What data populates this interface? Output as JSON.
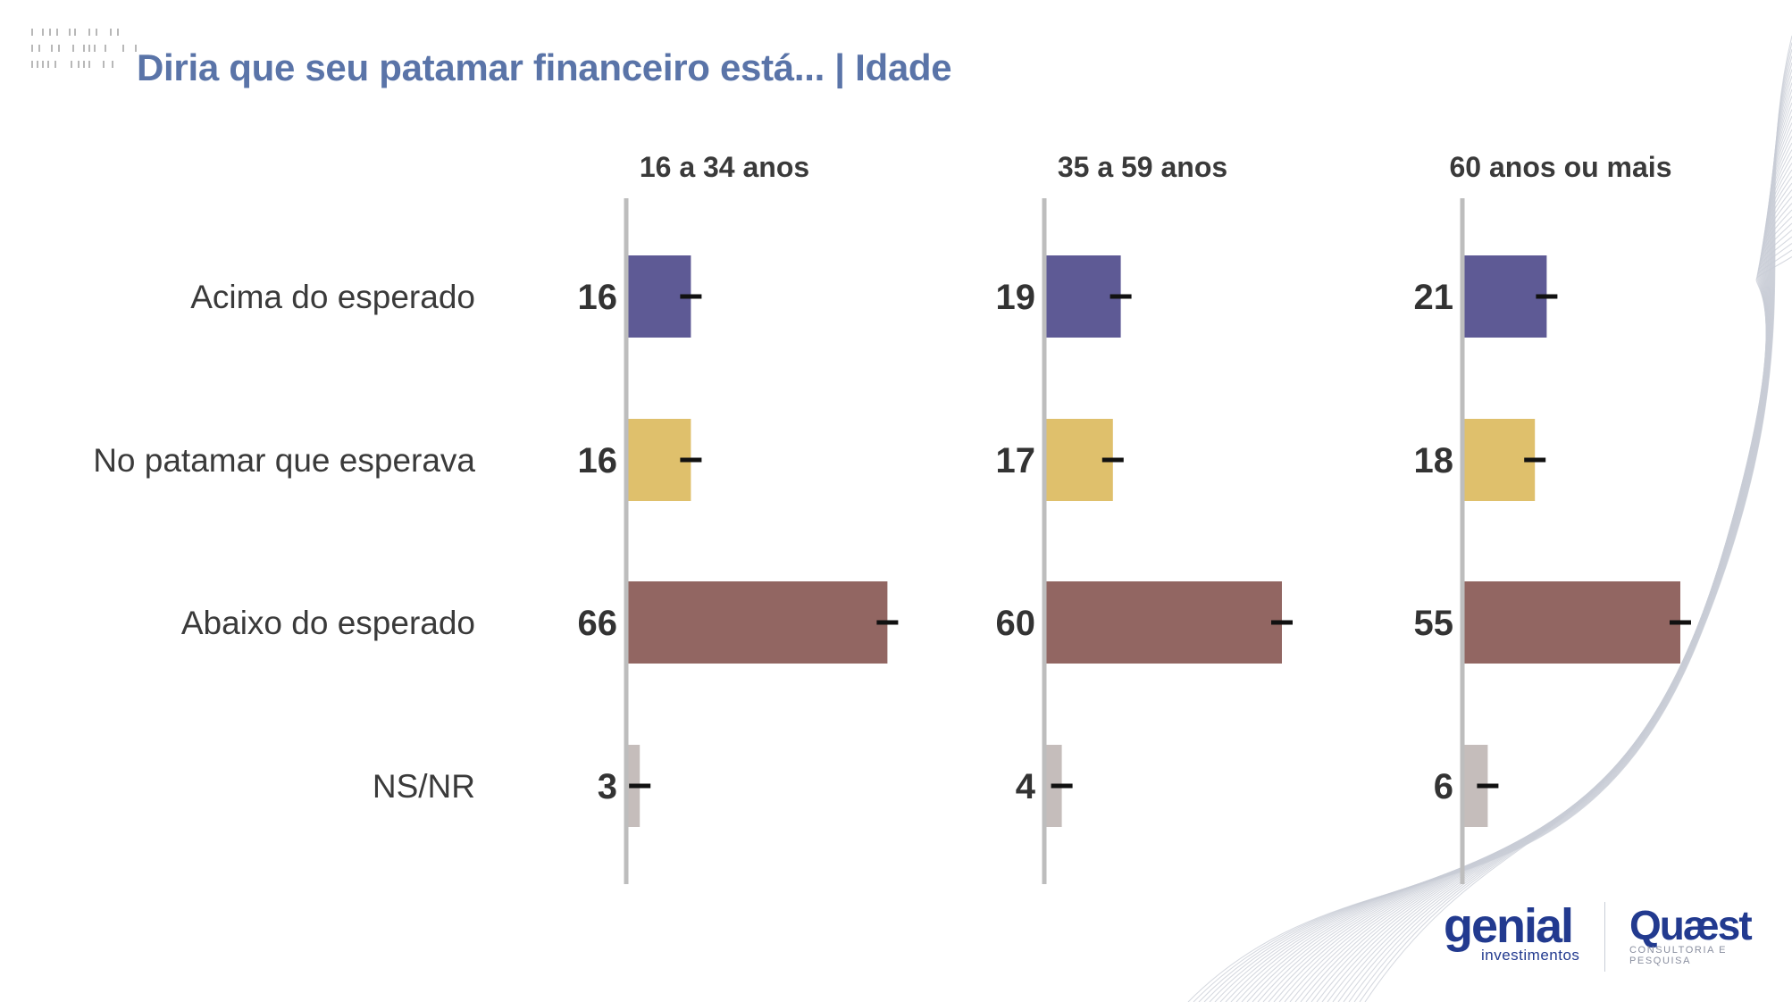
{
  "title": "Diria que seu patamar financeiro está... | Idade",
  "colors": {
    "title": "#5a74a8",
    "acima": "#5e5a95",
    "no_patamar": "#dfc06c",
    "abaixo": "#926662",
    "nsnr": "#c5bdbb",
    "axis": "#bdbdbd",
    "error_bar": "#111111",
    "logo": "#223a8f"
  },
  "chart_data": {
    "type": "bar",
    "orientation": "horizontal",
    "categories": [
      "Acima do esperado",
      "No patamar que esperava",
      "Abaixo do esperado",
      "NS/NR"
    ],
    "panels": [
      {
        "title": "16 a 34 anos",
        "values": [
          16,
          16,
          66,
          3
        ]
      },
      {
        "title": "35 a 59 anos",
        "values": [
          19,
          17,
          60,
          4
        ]
      },
      {
        "title": "60 anos ou mais",
        "values": [
          21,
          18,
          55,
          6
        ]
      }
    ],
    "xlim": [
      0,
      100
    ],
    "grid": false,
    "legend": "none",
    "error_bars": true
  },
  "logos": {
    "genial": {
      "word": "genial",
      "sub": "investimentos"
    },
    "quaest": {
      "word": "Quæst",
      "sub": "CONSULTORIA E PESQUISA"
    }
  }
}
